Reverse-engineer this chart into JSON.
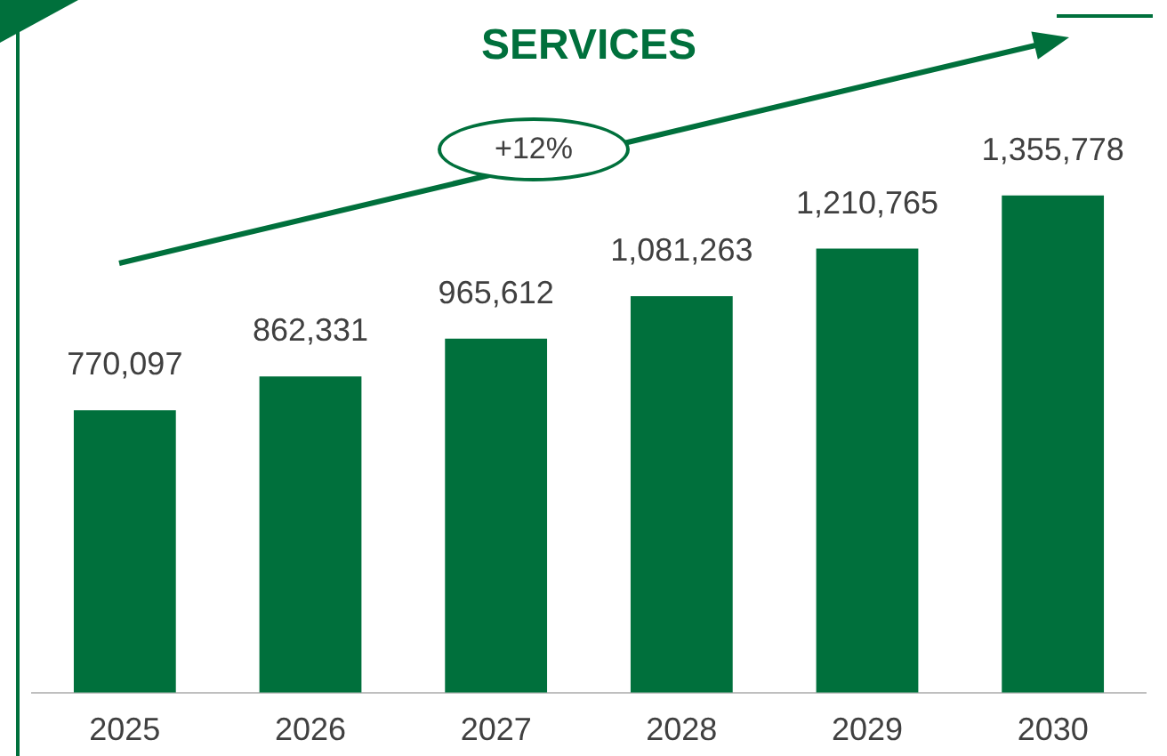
{
  "chart_data": {
    "type": "bar",
    "title": "SERVICES",
    "categories": [
      "2025",
      "2026",
      "2027",
      "2028",
      "2029",
      "2030"
    ],
    "values": [
      770097,
      862331,
      965612,
      1081263,
      1210765,
      1355778
    ],
    "value_labels": [
      "770,097",
      "862,331",
      "965,612",
      "1,081,263",
      "1,210,765",
      "1,355,778"
    ],
    "color": "#00703c",
    "grid": false,
    "legend": false,
    "annotations": [
      "+12%"
    ]
  }
}
